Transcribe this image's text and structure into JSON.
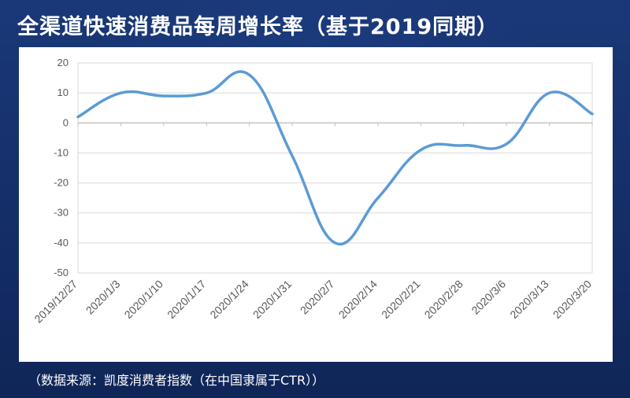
{
  "title": "全渠道快速消费品每周增长率（基于2019同期）",
  "source_note": "（数据来源：凯度消费者指数（在中国隶属于CTR））",
  "colors": {
    "background": "#173372",
    "line": "#5b9bd5",
    "grid": "#d9d9d9",
    "axis_text": "#595959"
  },
  "chart_data": {
    "type": "line",
    "title": "全渠道快速消费品每周增长率（基于2019同期）",
    "xlabel": "",
    "ylabel": "",
    "categories": [
      "2019/12/27",
      "2020/1/3",
      "2020/1/10",
      "2020/1/17",
      "2020/1/24",
      "2020/1/31",
      "2020/2/7",
      "2020/2/14",
      "2020/2/21",
      "2020/2/28",
      "2020/3/6",
      "2020/3/13",
      "2020/3/20"
    ],
    "series": [
      {
        "values": [
          2,
          10,
          9,
          10,
          16,
          -11,
          -40,
          -25,
          -9,
          -7.5,
          -7,
          10,
          3
        ]
      }
    ],
    "ylim": [
      -50,
      20
    ],
    "yticks": [
      20,
      10,
      0,
      -10,
      -20,
      -30,
      -40,
      -50
    ],
    "grid": true,
    "legend": "none"
  }
}
